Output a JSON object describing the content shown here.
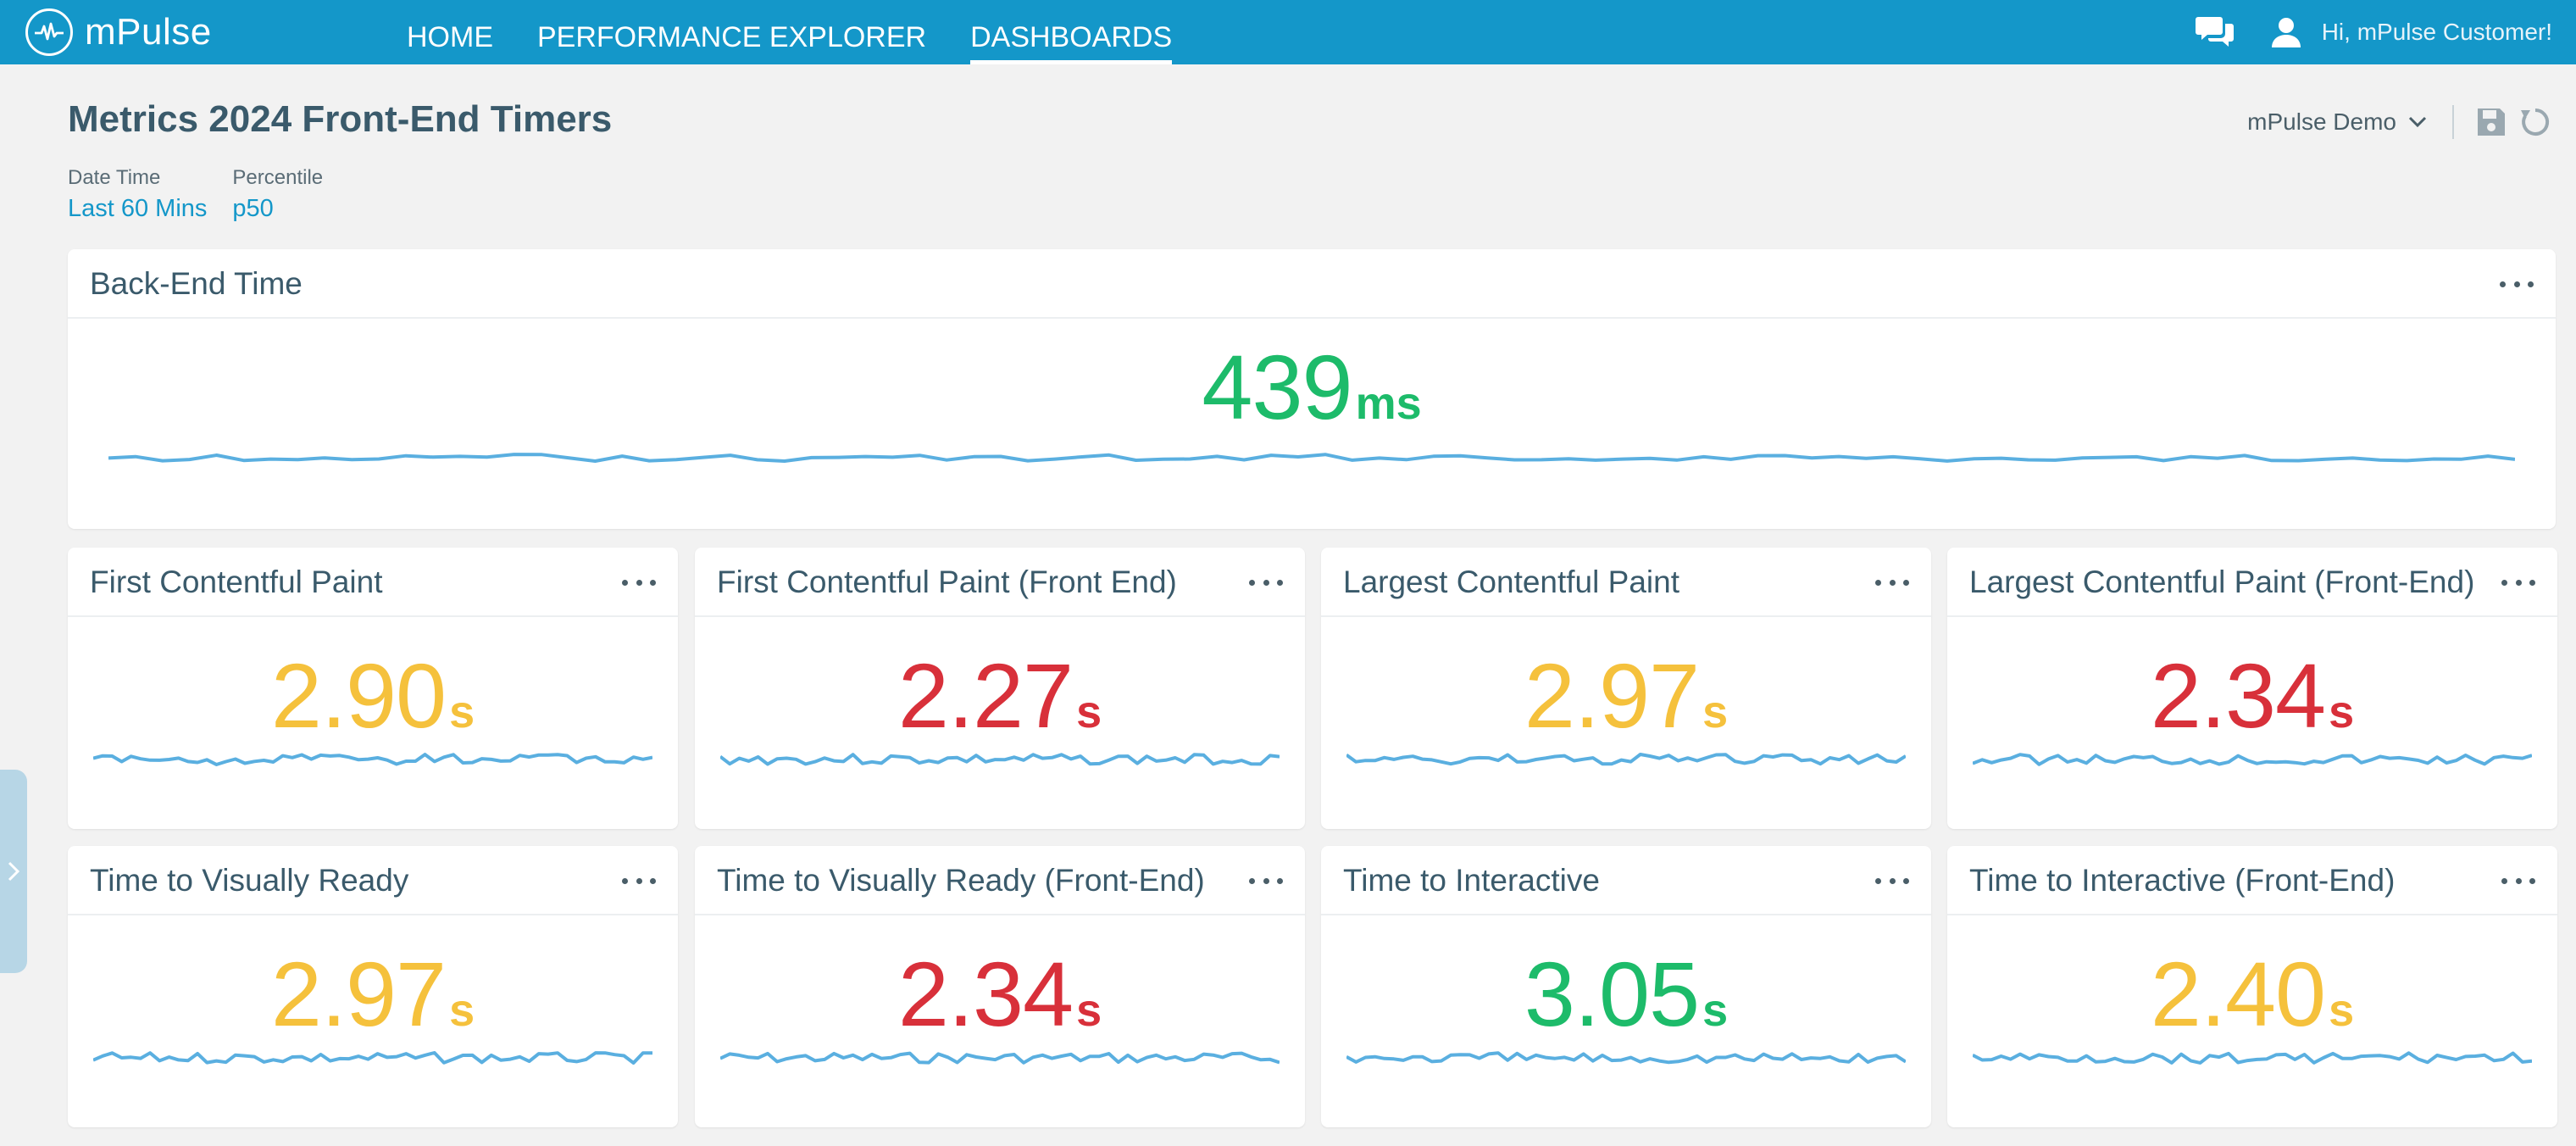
{
  "app": {
    "name": "mPulse",
    "nav": [
      {
        "label": "HOME",
        "active": false
      },
      {
        "label": "PERFORMANCE EXPLORER",
        "active": false
      },
      {
        "label": "DASHBOARDS",
        "active": true
      }
    ],
    "greeting": "Hi, mPulse Customer!"
  },
  "header": {
    "title": "Metrics 2024 Front-End Timers",
    "tenant": "mPulse Demo",
    "filters": [
      {
        "label": "Date Time",
        "value": "Last 60 Mins"
      },
      {
        "label": "Percentile",
        "value": "p50"
      }
    ]
  },
  "colors": {
    "brand": "#1497c9",
    "good": "#1dbb6a",
    "warn": "#f5c13c",
    "bad": "#d8303a",
    "spark": "#5aafe0"
  },
  "widgets": [
    {
      "title": "Back-End Time",
      "value": "439",
      "unit": "ms",
      "status": "good",
      "spark_seed": 1
    },
    {
      "title": "First Contentful Paint",
      "value": "2.90",
      "unit": "s",
      "status": "warn",
      "spark_seed": 2
    },
    {
      "title": "First Contentful Paint (Front End)",
      "value": "2.27",
      "unit": "s",
      "status": "bad",
      "spark_seed": 3
    },
    {
      "title": "Largest Contentful Paint",
      "value": "2.97",
      "unit": "s",
      "status": "warn",
      "spark_seed": 4
    },
    {
      "title": "Largest Contentful Paint (Front-End)",
      "value": "2.34",
      "unit": "s",
      "status": "bad",
      "spark_seed": 5
    },
    {
      "title": "Time to Visually Ready",
      "value": "2.97",
      "unit": "s",
      "status": "warn",
      "spark_seed": 6
    },
    {
      "title": "Time to Visually Ready (Front-End)",
      "value": "2.34",
      "unit": "s",
      "status": "bad",
      "spark_seed": 7
    },
    {
      "title": "Time to Interactive",
      "value": "3.05",
      "unit": "s",
      "status": "good",
      "spark_seed": 8
    },
    {
      "title": "Time to Interactive (Front-End)",
      "value": "2.40",
      "unit": "s",
      "status": "warn",
      "spark_seed": 9
    }
  ]
}
